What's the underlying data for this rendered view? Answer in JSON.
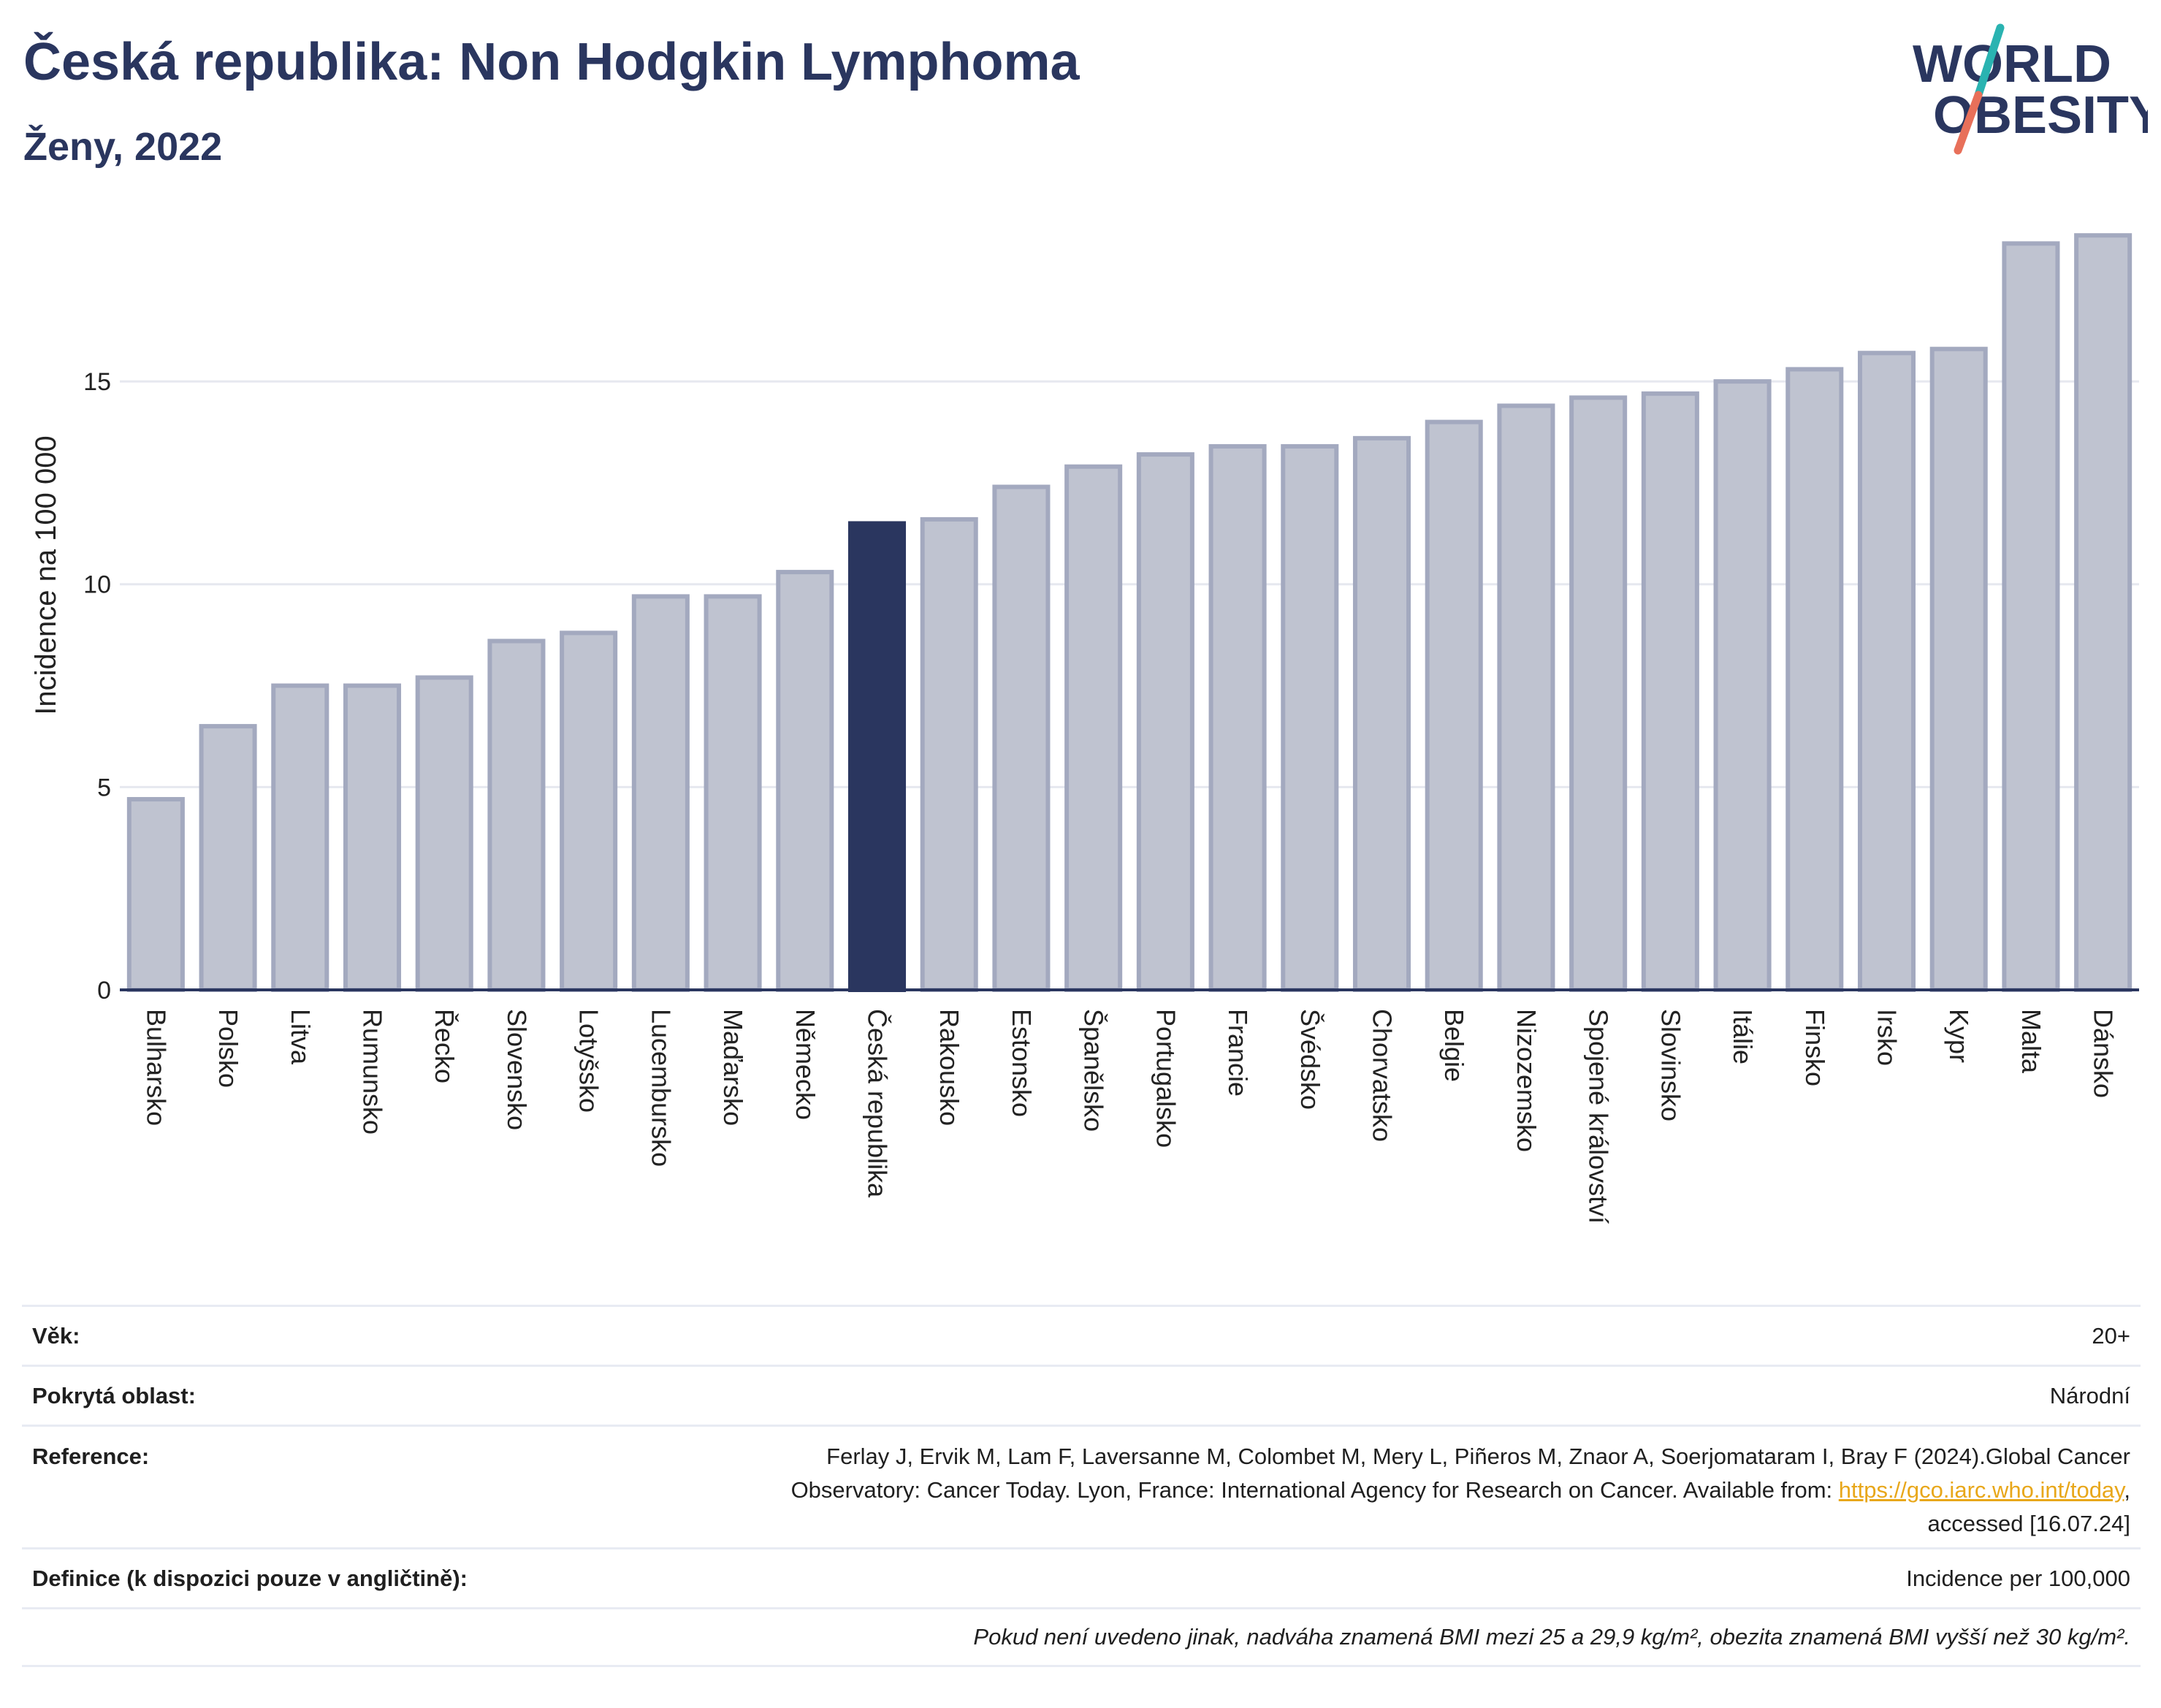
{
  "header": {
    "title": "Česká republika: Non Hodgkin Lymphoma",
    "subtitle": "Ženy, 2022"
  },
  "logo": {
    "line1": "WORLD",
    "line2": "OBESITY",
    "colors": {
      "text": "#2a365f",
      "slash_top": "#2ab3b1",
      "slash_bottom": "#e8705a"
    }
  },
  "chart_data": {
    "type": "bar",
    "title": "Česká republika: Non Hodgkin Lymphoma",
    "subtitle": "Ženy, 2022",
    "xlabel": "",
    "ylabel": "Incidence na 100 000",
    "ylim": [
      0,
      19
    ],
    "yticks": [
      0,
      5,
      10,
      15
    ],
    "grid": true,
    "highlight": "Česká republika",
    "colors": {
      "bar": "#bfc3d0",
      "bar_border": "#a3a9bf",
      "highlight": "#2a365f",
      "grid": "#e6e8ef",
      "axis": "#2a365f"
    },
    "categories": [
      "Bulharsko",
      "Polsko",
      "Litva",
      "Rumunsko",
      "Řecko",
      "Slovensko",
      "Lotyšsko",
      "Lucembursko",
      "Maďarsko",
      "Německo",
      "Česká republika",
      "Rakousko",
      "Estonsko",
      "Španělsko",
      "Portugalsko",
      "Francie",
      "Švédsko",
      "Chorvatsko",
      "Belgie",
      "Nizozemsko",
      "Spojené království",
      "Slovinsko",
      "Itálie",
      "Finsko",
      "Irsko",
      "Kypr",
      "Malta",
      "Dánsko"
    ],
    "values": [
      4.7,
      6.5,
      7.5,
      7.5,
      7.7,
      8.6,
      8.8,
      9.7,
      9.7,
      10.3,
      11.5,
      11.6,
      12.4,
      12.9,
      13.2,
      13.4,
      13.4,
      13.6,
      14.0,
      14.4,
      14.6,
      14.7,
      15.0,
      15.3,
      15.7,
      15.8,
      18.4,
      18.6
    ]
  },
  "meta": {
    "rows": [
      {
        "key": "Věk:",
        "value": "20+"
      },
      {
        "key": "Pokrytá oblast:",
        "value": "Národní"
      },
      {
        "key": "Reference:",
        "line1": "Ferlay J, Ervik M, Lam F, Laversanne M, Colombet M, Mery L, Piñeros M, Znaor A, Soerjomataram I, Bray F (2024).Global Cancer",
        "line2_pre": "Observatory: Cancer Today. Lyon, France: International Agency for Research on Cancer. Available from: ",
        "link": "https://gco.iarc.who.int/today",
        "line2_post": ",",
        "line3": "accessed [16.07.24]"
      },
      {
        "key": "Definice (k dispozici pouze v angličtině):",
        "value": "Incidence per 100,000"
      }
    ],
    "note": "Pokud není uvedeno jinak, nadváha znamená BMI mezi 25 a 29,9 kg/m², obezita znamená BMI vyšší než 30 kg/m²."
  }
}
